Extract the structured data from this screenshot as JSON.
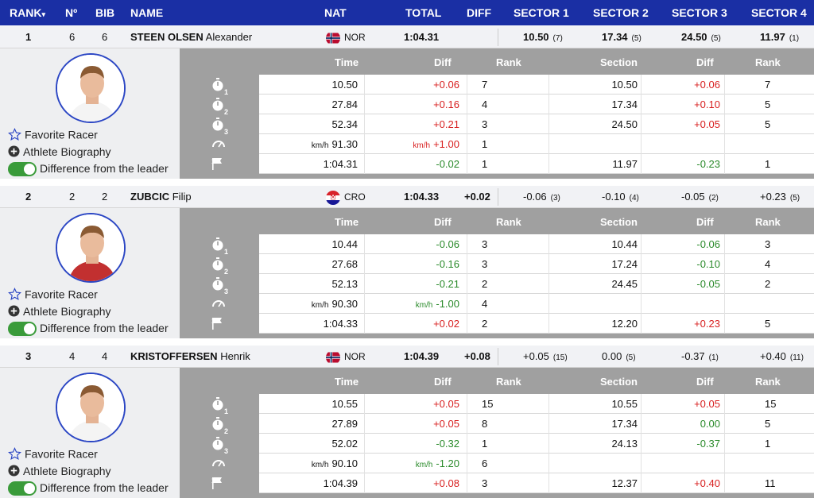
{
  "header": {
    "rank": "RANK",
    "rank_sort": "▾",
    "no": "Nº",
    "bib": "BIB",
    "name": "NAME",
    "nat": "NAT",
    "total": "TOTAL",
    "diff": "DIFF",
    "s1": "SECTOR 1",
    "s2": "SECTOR 2",
    "s3": "SECTOR 3",
    "s4": "SECTOR 4"
  },
  "colors": {
    "header_bg": "#1a2fa4",
    "positive": "#d82020",
    "negative": "#2a8a2a",
    "toggle": "#3a9b3a"
  },
  "detail_headers": {
    "time": "Time",
    "diff": "Diff",
    "rank": "Rank",
    "section": "Section",
    "diff2": "Diff",
    "rank2": "Rank"
  },
  "links": {
    "favorite": "Favorite Racer",
    "bio": "Athlete Biography",
    "difference": "Difference from the leader"
  },
  "icons": {
    "split": "stopwatch-icon",
    "speed": "speedometer-icon",
    "finish": "flag-icon",
    "favorite": "star-icon",
    "bio": "plus-circle-icon"
  },
  "athletes": [
    {
      "rank": "1",
      "no": "6",
      "bib": "6",
      "surname": "STEEN OLSEN",
      "firstname": "Alexander",
      "nat": "NOR",
      "total": "1:04.31",
      "diff": "",
      "sectors": [
        {
          "v": "10.50",
          "r": "(7)"
        },
        {
          "v": "17.34",
          "r": "(5)"
        },
        {
          "v": "24.50",
          "r": "(5)"
        },
        {
          "v": "11.97",
          "r": "(1)"
        }
      ],
      "rows": [
        {
          "time": "10.50",
          "diff": "+0.06",
          "rank": "7",
          "section": "10.50",
          "sdiff": "+0.06",
          "srank": "7"
        },
        {
          "time": "27.84",
          "diff": "+0.16",
          "rank": "4",
          "section": "17.34",
          "sdiff": "+0.10",
          "srank": "5"
        },
        {
          "time": "52.34",
          "diff": "+0.21",
          "rank": "3",
          "section": "24.50",
          "sdiff": "+0.05",
          "srank": "5"
        },
        {
          "unit": "km/h",
          "time": "91.30",
          "dunit": "km/h",
          "diff": "+1.00",
          "rank": "1",
          "section": "",
          "sdiff": "",
          "srank": ""
        },
        {
          "time": "1:04.31",
          "diff": "-0.02",
          "rank": "1",
          "section": "11.97",
          "sdiff": "-0.23",
          "srank": "1"
        }
      ]
    },
    {
      "rank": "2",
      "no": "2",
      "bib": "2",
      "surname": "ZUBCIC",
      "firstname": "Filip",
      "nat": "CRO",
      "total": "1:04.33",
      "diff": "+0.02",
      "sectors": [
        {
          "v": "-0.06",
          "r": "(3)"
        },
        {
          "v": "-0.10",
          "r": "(4)"
        },
        {
          "v": "-0.05",
          "r": "(2)"
        },
        {
          "v": "+0.23",
          "r": "(5)"
        }
      ],
      "rows": [
        {
          "time": "10.44",
          "diff": "-0.06",
          "rank": "3",
          "section": "10.44",
          "sdiff": "-0.06",
          "srank": "3"
        },
        {
          "time": "27.68",
          "diff": "-0.16",
          "rank": "3",
          "section": "17.24",
          "sdiff": "-0.10",
          "srank": "4"
        },
        {
          "time": "52.13",
          "diff": "-0.21",
          "rank": "2",
          "section": "24.45",
          "sdiff": "-0.05",
          "srank": "2"
        },
        {
          "unit": "km/h",
          "time": "90.30",
          "dunit": "km/h",
          "diff": "-1.00",
          "rank": "4",
          "section": "",
          "sdiff": "",
          "srank": ""
        },
        {
          "time": "1:04.33",
          "diff": "+0.02",
          "rank": "2",
          "section": "12.20",
          "sdiff": "+0.23",
          "srank": "5"
        }
      ]
    },
    {
      "rank": "3",
      "no": "4",
      "bib": "4",
      "surname": "KRISTOFFERSEN",
      "firstname": "Henrik",
      "nat": "NOR",
      "total": "1:04.39",
      "diff": "+0.08",
      "sectors": [
        {
          "v": "+0.05",
          "r": "(15)"
        },
        {
          "v": "0.00",
          "r": "(5)"
        },
        {
          "v": "-0.37",
          "r": "(1)"
        },
        {
          "v": "+0.40",
          "r": "(11)"
        }
      ],
      "rows": [
        {
          "time": "10.55",
          "diff": "+0.05",
          "rank": "15",
          "section": "10.55",
          "sdiff": "+0.05",
          "srank": "15"
        },
        {
          "time": "27.89",
          "diff": "+0.05",
          "rank": "8",
          "section": "17.34",
          "sdiff": "0.00",
          "srank": "5"
        },
        {
          "time": "52.02",
          "diff": "-0.32",
          "rank": "1",
          "section": "24.13",
          "sdiff": "-0.37",
          "srank": "1"
        },
        {
          "unit": "km/h",
          "time": "90.10",
          "dunit": "km/h",
          "diff": "-1.20",
          "rank": "6",
          "section": "",
          "sdiff": "",
          "srank": ""
        },
        {
          "time": "1:04.39",
          "diff": "+0.08",
          "rank": "3",
          "section": "12.37",
          "sdiff": "+0.40",
          "srank": "11"
        }
      ]
    }
  ]
}
